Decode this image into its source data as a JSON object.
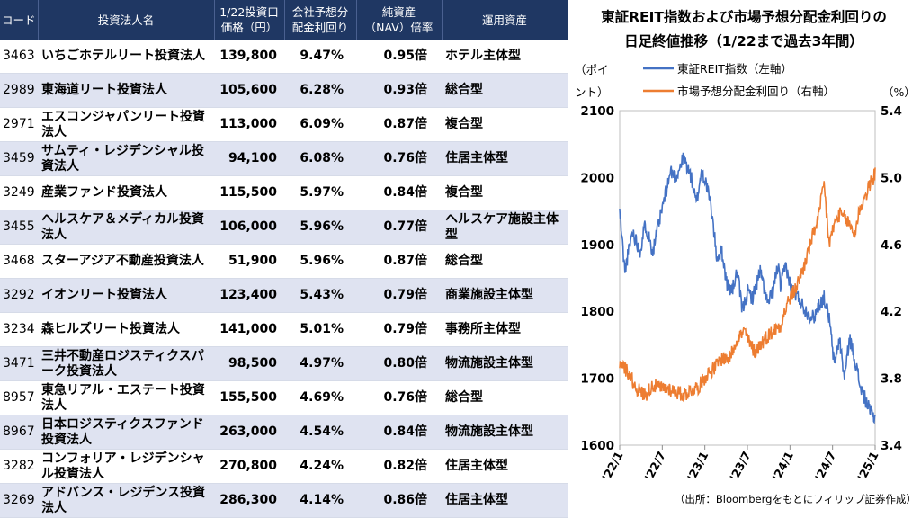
{
  "table": {
    "headers": [
      {
        "line1": "コード",
        "line2": ""
      },
      {
        "line1": "投資法人名",
        "line2": ""
      },
      {
        "line1": "1/22投資口",
        "line2": "価格（円）"
      },
      {
        "line1": "会社予想分",
        "line2": "配金利回り"
      },
      {
        "line1": "純資産",
        "line2": "（NAV）倍率"
      },
      {
        "line1": "運用資産",
        "line2": ""
      }
    ],
    "rows": [
      {
        "code": "3463",
        "name": "いちごホテルリート投資法人",
        "price": "139,800",
        "yield": "9.47%",
        "nav": "0.95倍",
        "asset": "ホテル主体型"
      },
      {
        "code": "2989",
        "name": "東海道リート投資法人",
        "price": "105,600",
        "yield": "6.28%",
        "nav": "0.93倍",
        "asset": "総合型"
      },
      {
        "code": "2971",
        "name": "エスコンジャパンリート投資法人",
        "price": "113,000",
        "yield": "6.09%",
        "nav": "0.87倍",
        "asset": "複合型"
      },
      {
        "code": "3459",
        "name": "サムティ・レジデンシャル投資法人",
        "price": "94,100",
        "yield": "6.08%",
        "nav": "0.76倍",
        "asset": "住居主体型"
      },
      {
        "code": "3249",
        "name": "産業ファンド投資法人",
        "price": "115,500",
        "yield": "5.97%",
        "nav": "0.84倍",
        "asset": "複合型"
      },
      {
        "code": "3455",
        "name": "ヘルスケア＆メディカル投資法人",
        "price": "106,000",
        "yield": "5.96%",
        "nav": "0.77倍",
        "asset": "ヘルスケア施設主体型"
      },
      {
        "code": "3468",
        "name": "スターアジア不動産投資法人",
        "price": "51,900",
        "yield": "5.96%",
        "nav": "0.87倍",
        "asset": "総合型"
      },
      {
        "code": "3292",
        "name": "イオンリート投資法人",
        "price": "123,400",
        "yield": "5.43%",
        "nav": "0.79倍",
        "asset": "商業施設主体型"
      },
      {
        "code": "3234",
        "name": "森ヒルズリート投資法人",
        "price": "141,000",
        "yield": "5.01%",
        "nav": "0.79倍",
        "asset": "事務所主体型"
      },
      {
        "code": "3471",
        "name": "三井不動産ロジスティクスパーク投資法人",
        "price": "98,500",
        "yield": "4.97%",
        "nav": "0.80倍",
        "asset": "物流施設主体型"
      },
      {
        "code": "8957",
        "name": "東急リアル・エステート投資法人",
        "price": "155,500",
        "yield": "4.69%",
        "nav": "0.76倍",
        "asset": "総合型"
      },
      {
        "code": "8967",
        "name": "日本ロジスティクスファンド投資法人",
        "price": "263,000",
        "yield": "4.54%",
        "nav": "0.84倍",
        "asset": "物流施設主体型"
      },
      {
        "code": "3282",
        "name": "コンフォリア・レジデンシャル投資法人",
        "price": "270,800",
        "yield": "4.24%",
        "nav": "0.82倍",
        "asset": "住居主体型"
      },
      {
        "code": "3269",
        "name": "アドバンス・レジデンス投資法人",
        "price": "286,300",
        "yield": "4.14%",
        "nav": "0.86倍",
        "asset": "住居主体型"
      }
    ]
  },
  "chart_data": {
    "type": "line",
    "title": [
      "東証REIT指数および市場予想分配金利回りの",
      "日足終値推移（1/22まで過去3年間）"
    ],
    "y_left_label": [
      "（ポイ",
      "ント）"
    ],
    "y_right_label": "（%）",
    "ylim_left": [
      1600,
      2100
    ],
    "ylim_right": [
      3.4,
      5.4
    ],
    "y_left_ticks": [
      "1600",
      "1700",
      "1800",
      "1900",
      "2000",
      "2100"
    ],
    "y_right_ticks": [
      "3.4",
      "3.8",
      "4.2",
      "4.6",
      "5.0",
      "5.4"
    ],
    "x_ticks": [
      "'22/1",
      "'22/7",
      "'23/1",
      "'23/7",
      "'24/1",
      "'24/7",
      "'25/1"
    ],
    "source": "（出所：Bloombergをもとにフィリップ証券作成）",
    "series": [
      {
        "name": "東証REIT指数（左軸）",
        "axis": "left",
        "color": "#4472c4",
        "points": [
          [
            0,
            1950
          ],
          [
            0.02,
            1860
          ],
          [
            0.05,
            1920
          ],
          [
            0.08,
            1890
          ],
          [
            0.1,
            1930
          ],
          [
            0.13,
            1890
          ],
          [
            0.17,
            1960
          ],
          [
            0.2,
            2010
          ],
          [
            0.22,
            2000
          ],
          [
            0.25,
            2030
          ],
          [
            0.28,
            2000
          ],
          [
            0.3,
            1960
          ],
          [
            0.32,
            2010
          ],
          [
            0.34,
            1990
          ],
          [
            0.36,
            1950
          ],
          [
            0.38,
            1880
          ],
          [
            0.4,
            1890
          ],
          [
            0.42,
            1840
          ],
          [
            0.44,
            1830
          ],
          [
            0.46,
            1860
          ],
          [
            0.48,
            1800
          ],
          [
            0.5,
            1830
          ],
          [
            0.52,
            1820
          ],
          [
            0.55,
            1860
          ],
          [
            0.58,
            1810
          ],
          [
            0.6,
            1830
          ],
          [
            0.62,
            1870
          ],
          [
            0.63,
            1835
          ],
          [
            0.65,
            1870
          ],
          [
            0.67,
            1835
          ],
          [
            0.7,
            1820
          ],
          [
            0.73,
            1800
          ],
          [
            0.76,
            1790
          ],
          [
            0.78,
            1810
          ],
          [
            0.8,
            1820
          ],
          [
            0.82,
            1790
          ],
          [
            0.84,
            1720
          ],
          [
            0.86,
            1760
          ],
          [
            0.88,
            1700
          ],
          [
            0.9,
            1760
          ],
          [
            0.92,
            1730
          ],
          [
            0.94,
            1690
          ],
          [
            0.96,
            1670
          ],
          [
            0.98,
            1650
          ],
          [
            1.0,
            1640
          ]
        ]
      },
      {
        "name": "市場予想分配金利回り（右軸）",
        "axis": "right",
        "color": "#ed7d31",
        "points": [
          [
            0,
            3.9
          ],
          [
            0.02,
            3.86
          ],
          [
            0.04,
            3.82
          ],
          [
            0.06,
            3.75
          ],
          [
            0.08,
            3.72
          ],
          [
            0.1,
            3.7
          ],
          [
            0.13,
            3.76
          ],
          [
            0.16,
            3.74
          ],
          [
            0.19,
            3.74
          ],
          [
            0.22,
            3.72
          ],
          [
            0.25,
            3.7
          ],
          [
            0.28,
            3.73
          ],
          [
            0.31,
            3.75
          ],
          [
            0.34,
            3.82
          ],
          [
            0.37,
            3.86
          ],
          [
            0.4,
            3.92
          ],
          [
            0.43,
            3.92
          ],
          [
            0.46,
            4.04
          ],
          [
            0.49,
            4.08
          ],
          [
            0.51,
            4.0
          ],
          [
            0.53,
            3.96
          ],
          [
            0.55,
            4.0
          ],
          [
            0.57,
            4.04
          ],
          [
            0.6,
            4.08
          ],
          [
            0.63,
            4.12
          ],
          [
            0.66,
            4.26
          ],
          [
            0.69,
            4.34
          ],
          [
            0.72,
            4.46
          ],
          [
            0.75,
            4.62
          ],
          [
            0.78,
            4.78
          ],
          [
            0.8,
            4.96
          ],
          [
            0.82,
            4.6
          ],
          [
            0.84,
            4.72
          ],
          [
            0.86,
            4.78
          ],
          [
            0.88,
            4.76
          ],
          [
            0.9,
            4.72
          ],
          [
            0.92,
            4.66
          ],
          [
            0.94,
            4.82
          ],
          [
            0.96,
            4.88
          ],
          [
            0.98,
            4.96
          ],
          [
            1.0,
            5.02
          ]
        ]
      }
    ]
  }
}
